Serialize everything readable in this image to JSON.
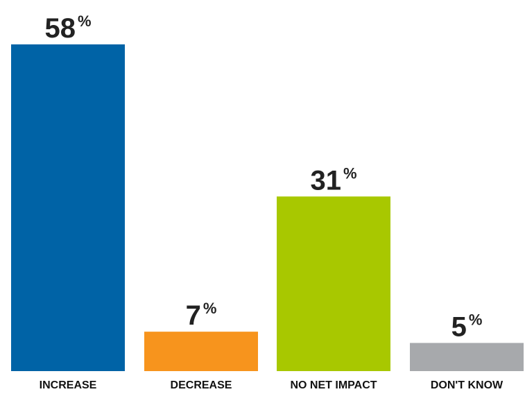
{
  "chart_data": {
    "type": "bar",
    "categories": [
      "INCREASE",
      "DECREASE",
      "NO NET IMPACT",
      "DON'T KNOW"
    ],
    "values": [
      58,
      7,
      31,
      5
    ],
    "value_labels": [
      "58",
      "7",
      "31",
      "5"
    ],
    "value_suffix": "%",
    "colors": [
      "#0063a6",
      "#f7941d",
      "#a8c800",
      "#a7a9ac"
    ],
    "ylim": [
      0,
      58
    ],
    "grid": false,
    "legend": "none"
  }
}
